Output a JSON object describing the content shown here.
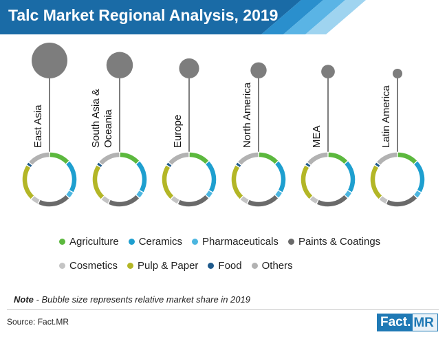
{
  "header": {
    "title": "Talc Market Regional Analysis, 2019"
  },
  "chart_data": {
    "type": "bubble-donut",
    "title": "Talc Market Regional Analysis, 2019",
    "note_label": "Note",
    "note": "- Bubble size represents relative market share in 2019",
    "regions": [
      {
        "name": [
          "East Asia"
        ],
        "bubble_size": 1.0
      },
      {
        "name": [
          "South Asia &",
          "Oceania"
        ],
        "bubble_size": 0.74
      },
      {
        "name": [
          "Europe"
        ],
        "bubble_size": 0.56
      },
      {
        "name": [
          "North America"
        ],
        "bubble_size": 0.45
      },
      {
        "name": [
          "MEA"
        ],
        "bubble_size": 0.38
      },
      {
        "name": [
          "Latin America"
        ],
        "bubble_size": 0.27
      }
    ],
    "segments": [
      {
        "name": "Agriculture",
        "color": "#5cb83e",
        "share": 13
      },
      {
        "name": "Ceramics",
        "color": "#1e9fcf",
        "share": 20
      },
      {
        "name": "Pharmaceuticals",
        "color": "#4cb6e0",
        "share": 4
      },
      {
        "name": "Paints & Coatings",
        "color": "#6a6a6a",
        "share": 20
      },
      {
        "name": "Cosmetics",
        "color": "#c4c4c4",
        "share": 5
      },
      {
        "name": "Pulp & Paper",
        "color": "#b3b626",
        "share": 22
      },
      {
        "name": "Food",
        "color": "#1f5a8c",
        "share": 2
      },
      {
        "name": "Others",
        "color": "#b2b2b2",
        "share": 14
      }
    ],
    "legend_rows": [
      [
        "Agriculture",
        "Ceramics",
        "Pharmaceuticals",
        "Paints & Coatings"
      ],
      [
        "Cosmetics",
        "Pulp & Paper",
        "Food",
        "Others"
      ]
    ],
    "colors": {
      "bubble": "#7d7d7d",
      "stem": "#7d7d7d",
      "banner": "#1a6ba6"
    }
  },
  "footer": {
    "source": "Source: Fact.MR",
    "logo_a": "Fact.",
    "logo_b": "MR"
  }
}
